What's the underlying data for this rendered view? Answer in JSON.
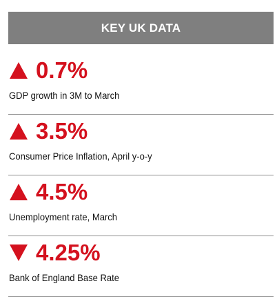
{
  "colors": {
    "accent": "#d4111e",
    "header_bg": "#7f7f7f"
  },
  "header": {
    "title": "KEY UK DATA"
  },
  "stats": [
    {
      "value": "0.7%",
      "direction": "up",
      "icon": "triangle-up-icon",
      "label": "GDP growth in 3M to March"
    },
    {
      "value": "3.5%",
      "direction": "up",
      "icon": "triangle-up-icon",
      "label": "Consumer Price Inflation, April y-o-y"
    },
    {
      "value": "4.5%",
      "direction": "up",
      "icon": "triangle-up-icon",
      "label": "Unemployment rate, March"
    },
    {
      "value": "4.25%",
      "direction": "down",
      "icon": "triangle-down-icon",
      "label": "Bank of England Base Rate"
    }
  ]
}
